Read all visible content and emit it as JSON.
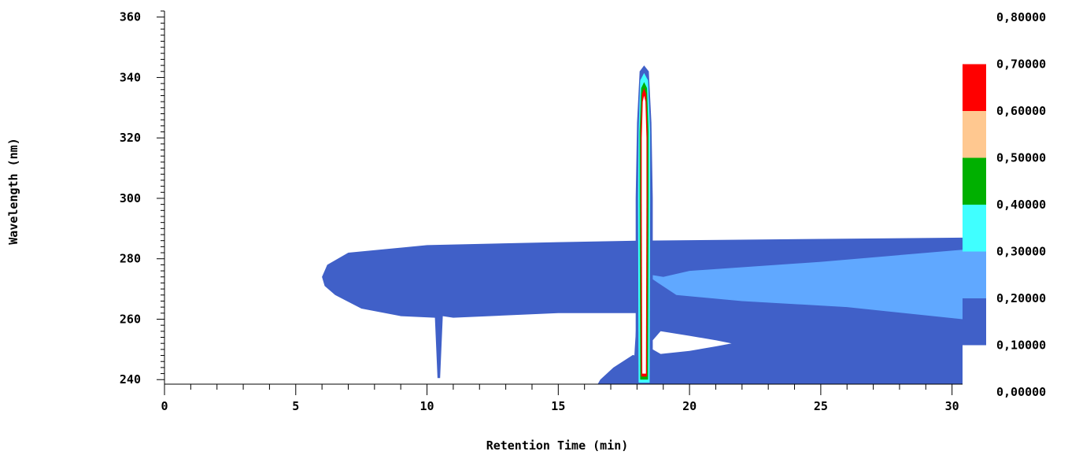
{
  "chart_data": {
    "type": "heatmap",
    "title": "",
    "xlabel": "Retention Time (min)",
    "ylabel": "Wavelength (nm)",
    "xlim": [
      0,
      30.4
    ],
    "ylim": [
      238.5,
      362
    ],
    "x_ticks": [
      "0",
      "5",
      "10",
      "15",
      "20",
      "25",
      "30"
    ],
    "y_ticks": [
      "240",
      "260",
      "280",
      "300",
      "320",
      "340",
      "360"
    ],
    "grid": false,
    "colorbar": {
      "ticks": [
        "0,00000",
        "0,10000",
        "0,20000",
        "0,30000",
        "0,40000",
        "0,50000",
        "0,60000",
        "0,70000",
        "0,80000"
      ],
      "levels": [
        {
          "min": 0.1,
          "max": 0.2,
          "color": "#4060c8"
        },
        {
          "min": 0.2,
          "max": 0.3,
          "color": "#60a8ff"
        },
        {
          "min": 0.3,
          "max": 0.4,
          "color": "#40ffff"
        },
        {
          "min": 0.4,
          "max": 0.5,
          "color": "#00b000"
        },
        {
          "min": 0.5,
          "max": 0.6,
          "color": "#ffc890"
        },
        {
          "min": 0.6,
          "max": 0.7,
          "color": "#ff0000"
        }
      ]
    },
    "regions": [
      {
        "level": 0.1,
        "points": [
          [
            6.0,
            274
          ],
          [
            6.2,
            278
          ],
          [
            7.0,
            282
          ],
          [
            10.0,
            284.5
          ],
          [
            15.0,
            285.5
          ],
          [
            18.0,
            286
          ],
          [
            30.4,
            287
          ],
          [
            30.4,
            238.5
          ],
          [
            16.5,
            238.5
          ],
          [
            16.6,
            240
          ],
          [
            17.1,
            244
          ],
          [
            17.9,
            248.5
          ],
          [
            18.0,
            262
          ],
          [
            15.0,
            262
          ],
          [
            11.0,
            260.5
          ],
          [
            10.6,
            261
          ],
          [
            10.5,
            240.5
          ],
          [
            10.4,
            240.5
          ],
          [
            10.3,
            260.5
          ],
          [
            9.0,
            261
          ],
          [
            7.5,
            263.5
          ],
          [
            6.5,
            268
          ],
          [
            6.1,
            271
          ]
        ]
      },
      {
        "level": 0.2,
        "points": [
          [
            18.3,
            275
          ],
          [
            19.0,
            274
          ],
          [
            20.0,
            276
          ],
          [
            25.0,
            279
          ],
          [
            30.4,
            283
          ],
          [
            30.4,
            260
          ],
          [
            26.0,
            264
          ],
          [
            22.0,
            266
          ],
          [
            19.5,
            268
          ],
          [
            18.8,
            272
          ]
        ]
      },
      {
        "level": 0.1,
        "points": [
          [
            18.27,
            344
          ],
          [
            18.45,
            342
          ],
          [
            18.55,
            325
          ],
          [
            18.6,
            300
          ],
          [
            18.6,
            238.5
          ],
          [
            17.95,
            238.5
          ],
          [
            17.95,
            300
          ],
          [
            18.0,
            325
          ],
          [
            18.1,
            342
          ]
        ]
      },
      {
        "level": 0.3,
        "points": [
          [
            18.27,
            341.5
          ],
          [
            18.42,
            339
          ],
          [
            18.5,
            322
          ],
          [
            18.5,
            300
          ],
          [
            18.48,
            239
          ],
          [
            18.06,
            239
          ],
          [
            18.04,
            300
          ],
          [
            18.06,
            322
          ],
          [
            18.12,
            339
          ]
        ]
      },
      {
        "level": 0.4,
        "points": [
          [
            18.27,
            338.5
          ],
          [
            18.38,
            336.5
          ],
          [
            18.44,
            322
          ],
          [
            18.44,
            300
          ],
          [
            18.42,
            240
          ],
          [
            18.12,
            240
          ],
          [
            18.1,
            300
          ],
          [
            18.1,
            322
          ],
          [
            18.16,
            336.5
          ]
        ]
      },
      {
        "level": 0.6,
        "points": [
          [
            18.27,
            336.5
          ],
          [
            18.35,
            334.5
          ],
          [
            18.4,
            322
          ],
          [
            18.4,
            300
          ],
          [
            18.38,
            241
          ],
          [
            18.16,
            241
          ],
          [
            18.14,
            300
          ],
          [
            18.14,
            322
          ],
          [
            18.19,
            334.5
          ]
        ]
      }
    ],
    "holes": [
      {
        "points": [
          [
            18.27,
            334
          ],
          [
            18.32,
            332
          ],
          [
            18.36,
            320
          ],
          [
            18.36,
            300
          ],
          [
            18.34,
            242
          ],
          [
            18.2,
            242
          ],
          [
            18.18,
            300
          ],
          [
            18.18,
            320
          ],
          [
            18.22,
            332
          ]
        ]
      },
      {
        "points": [
          [
            18.6,
            253
          ],
          [
            18.9,
            256
          ],
          [
            20.0,
            254.5
          ],
          [
            21.0,
            253
          ],
          [
            21.6,
            252
          ],
          [
            21.0,
            251
          ],
          [
            20.0,
            249.5
          ],
          [
            18.9,
            248.5
          ],
          [
            18.6,
            250
          ]
        ]
      },
      {
        "points": [
          [
            17.4,
            252
          ],
          [
            17.9,
            254
          ],
          [
            17.9,
            248
          ],
          [
            17.4,
            249.5
          ],
          [
            17.2,
            250.5
          ]
        ]
      }
    ]
  }
}
